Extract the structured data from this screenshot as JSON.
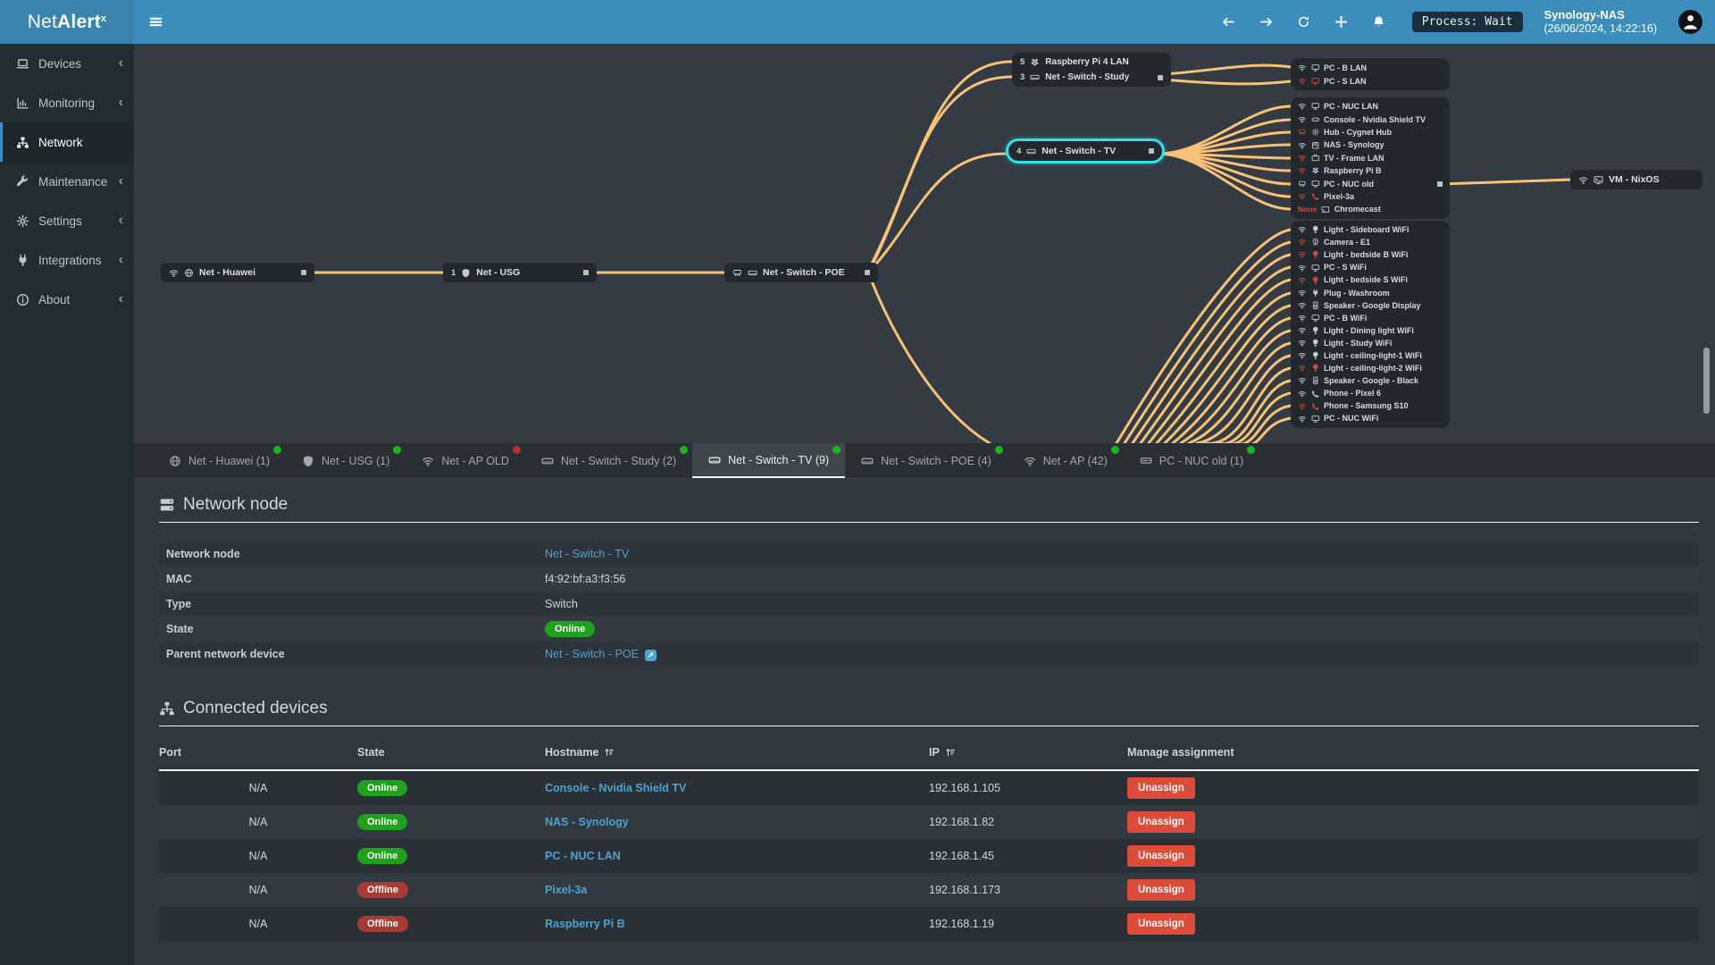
{
  "app": {
    "brand_prefix": "Net",
    "brand_bold": "Alert",
    "brand_sup": "x"
  },
  "topbar": {
    "process_label": "Process: Wait",
    "host_name": "Synology-NAS",
    "host_time": "(26/06/2024, 14:22:16)"
  },
  "sidebar": {
    "items": [
      {
        "label": "Devices",
        "icon": "laptop",
        "active": false
      },
      {
        "label": "Monitoring",
        "icon": "chart",
        "active": false
      },
      {
        "label": "Network",
        "icon": "sitemap",
        "active": true
      },
      {
        "label": "Maintenance",
        "icon": "wrench",
        "active": false
      },
      {
        "label": "Settings",
        "icon": "gear",
        "active": false
      },
      {
        "label": "Integrations",
        "icon": "plug",
        "active": false
      },
      {
        "label": "About",
        "icon": "info",
        "active": false
      }
    ]
  },
  "diagram": {
    "nodes": [
      {
        "id": "huawei",
        "label": "Net - Huawei",
        "icons": [
          "wifi",
          "globe"
        ],
        "port": true
      },
      {
        "id": "usg",
        "label": "Net - USG",
        "count": "1",
        "icons": [
          "shield"
        ],
        "port": true
      },
      {
        "id": "poe",
        "label": "Net - Switch - POE",
        "icons": [
          "eth",
          "switch"
        ],
        "port": true
      },
      {
        "id": "tv",
        "label": "Net - Switch - TV",
        "count": "4",
        "icons": [
          "switch"
        ],
        "port": true,
        "highlighted": true
      },
      {
        "id": "vm",
        "label": "VM - NixOS",
        "icons": [
          "wifi",
          "vm"
        ],
        "port": false
      }
    ],
    "combo_rows": [
      {
        "count": "5",
        "icon": "raspberry",
        "label": "Raspberry Pi 4 LAN",
        "port": false
      },
      {
        "count": "3",
        "icon": "switch",
        "label": "Net - Switch - Study",
        "port": true
      }
    ],
    "clusters": {
      "study": [
        {
          "label": "PC - B LAN",
          "link": "wifi",
          "link_state": "online",
          "icon": "monitor",
          "icon_state": "online"
        },
        {
          "label": "PC - S LAN",
          "link": "wifi",
          "link_state": "offline",
          "icon": "monitor",
          "icon_state": "offline"
        }
      ],
      "tv": [
        {
          "label": "PC - NUC LAN",
          "link": "wifi",
          "link_state": "online",
          "icon": "monitor",
          "icon_state": "online"
        },
        {
          "label": "Console - Nvidia Shield TV",
          "link": "wifi",
          "link_state": "online",
          "icon": "console",
          "icon_state": "online"
        },
        {
          "label": "Hub - Cygnet Hub",
          "link": "eth",
          "link_state": "offline",
          "icon": "hub",
          "icon_state": "online"
        },
        {
          "label": "NAS - Synology",
          "link": "wifi",
          "link_state": "online",
          "icon": "nas",
          "icon_state": "online"
        },
        {
          "label": "TV - Frame LAN",
          "link": "wifi",
          "link_state": "offline",
          "icon": "tv",
          "icon_state": "online"
        },
        {
          "label": "Raspberry Pi B",
          "link": "wifi",
          "link_state": "offline",
          "icon": "raspberry",
          "icon_state": "online"
        },
        {
          "label": "PC - NUC old",
          "link": "eth",
          "link_state": "online",
          "icon": "monitor",
          "icon_state": "online",
          "port": true
        },
        {
          "label": "Pixel-3a",
          "link": "wifi",
          "link_state": "offline",
          "icon": "phone",
          "icon_state": "offline"
        },
        {
          "label": "Chromecast",
          "prefix": "None",
          "icon": "cast",
          "icon_state": "online"
        }
      ],
      "ap": [
        {
          "label": "Light - Sideboard WiFi",
          "link": "wifi",
          "link_state": "online",
          "icon": "bulb",
          "icon_state": "online"
        },
        {
          "label": "Camera - E1",
          "link": "wifi",
          "link_state": "offline",
          "icon": "camera",
          "icon_state": "online"
        },
        {
          "label": "Light - bedside B WiFi",
          "link": "wifi",
          "link_state": "offline",
          "icon": "bulb",
          "icon_state": "offline"
        },
        {
          "label": "PC - S WiFi",
          "link": "wifi",
          "link_state": "online",
          "icon": "monitor",
          "icon_state": "online"
        },
        {
          "label": "Light - bedside S WiFi",
          "link": "wifi",
          "link_state": "offline",
          "icon": "bulb",
          "icon_state": "offline"
        },
        {
          "label": "Plug - Washroom",
          "link": "wifi",
          "link_state": "online",
          "icon": "plug",
          "icon_state": "online"
        },
        {
          "label": "Speaker - Google Display",
          "link": "wifi",
          "link_state": "online",
          "icon": "speaker",
          "icon_state": "online"
        },
        {
          "label": "PC - B WiFi",
          "link": "wifi",
          "link_state": "online",
          "icon": "monitor",
          "icon_state": "online"
        },
        {
          "label": "Light - Dining light WiFi",
          "link": "wifi",
          "link_state": "online",
          "icon": "bulb",
          "icon_state": "online"
        },
        {
          "label": "Light - Study WiFi",
          "link": "wifi",
          "link_state": "online",
          "icon": "bulb",
          "icon_state": "online"
        },
        {
          "label": "Light - ceiling-light-1 WiFi",
          "link": "wifi",
          "link_state": "online",
          "icon": "bulb",
          "icon_state": "online"
        },
        {
          "label": "Light - ceiling-light-2 WiFi",
          "link": "wifi",
          "link_state": "offline",
          "icon": "bulb",
          "icon_state": "offline"
        },
        {
          "label": "Speaker - Google - Black",
          "link": "wifi",
          "link_state": "online",
          "icon": "speaker",
          "icon_state": "online"
        },
        {
          "label": "Phone - Pixel 6",
          "link": "wifi",
          "link_state": "online",
          "icon": "phone",
          "icon_state": "online"
        },
        {
          "label": "Phone - Samsung S10",
          "link": "wifi",
          "link_state": "offline",
          "icon": "phone",
          "icon_state": "offline"
        },
        {
          "label": "PC - NUC WiFi",
          "link": "wifi",
          "link_state": "online",
          "icon": "monitor",
          "icon_state": "online"
        }
      ]
    }
  },
  "tabs": [
    {
      "label": "Net - Huawei (1)",
      "icon": "globe",
      "dot": "green",
      "active": false
    },
    {
      "label": "Net - USG (1)",
      "icon": "shield",
      "dot": "green",
      "active": false
    },
    {
      "label": "Net - AP OLD",
      "icon": "wifi",
      "dot": "red",
      "active": false
    },
    {
      "label": "Net - Switch - Study (2)",
      "icon": "switch",
      "dot": "green",
      "active": false
    },
    {
      "label": "Net - Switch - TV (9)",
      "icon": "switch",
      "dot": "green",
      "active": true
    },
    {
      "label": "Net - Switch - POE (4)",
      "icon": "switch",
      "dot": "green",
      "active": false
    },
    {
      "label": "Net - AP (42)",
      "icon": "wifi",
      "dot": "green",
      "active": false
    },
    {
      "label": "PC - NUC old (1)",
      "icon": "pc",
      "dot": "green",
      "active": false
    }
  ],
  "node_section": {
    "title": "Network node",
    "rows": [
      {
        "label": "Network node",
        "value": "Net - Switch - TV",
        "kind": "link"
      },
      {
        "label": "MAC",
        "value": "f4:92:bf:a3:f3:56",
        "kind": "text"
      },
      {
        "label": "Type",
        "value": "Switch",
        "kind": "text"
      },
      {
        "label": "State",
        "value": "Online",
        "kind": "badge"
      },
      {
        "label": "Parent network device",
        "value": "Net - Switch - POE",
        "kind": "link_ext"
      }
    ]
  },
  "devices_section": {
    "title": "Connected devices",
    "columns": [
      {
        "label": "Port",
        "sortable": false
      },
      {
        "label": "State",
        "sortable": false
      },
      {
        "label": "Hostname",
        "sortable": true
      },
      {
        "label": "IP",
        "sortable": true
      },
      {
        "label": "Manage assignment",
        "sortable": false
      }
    ],
    "rows": [
      {
        "port": "N/A",
        "state": "Online",
        "hostname": "Console - Nvidia Shield TV",
        "ip": "192.168.1.105",
        "action": "Unassign"
      },
      {
        "port": "N/A",
        "state": "Online",
        "hostname": "NAS - Synology",
        "ip": "192.168.1.82",
        "action": "Unassign"
      },
      {
        "port": "N/A",
        "state": "Online",
        "hostname": "PC - NUC LAN",
        "ip": "192.168.1.45",
        "action": "Unassign"
      },
      {
        "port": "N/A",
        "state": "Offline",
        "hostname": "Pixel-3a",
        "ip": "192.168.1.173",
        "action": "Unassign"
      },
      {
        "port": "N/A",
        "state": "Offline",
        "hostname": "Raspberry Pi B",
        "ip": "192.168.1.19",
        "action": "Unassign"
      }
    ]
  },
  "colors": {
    "navbar": "#3c8dbc",
    "link": "#4ba3d4",
    "online": "#1ea21e",
    "offline": "#a73c34",
    "danger": "#dd4b39",
    "edge": "#f5c278",
    "highlight": "#2fe2e6",
    "dot_green": "#1db51d",
    "dot_red": "#b5312a"
  }
}
